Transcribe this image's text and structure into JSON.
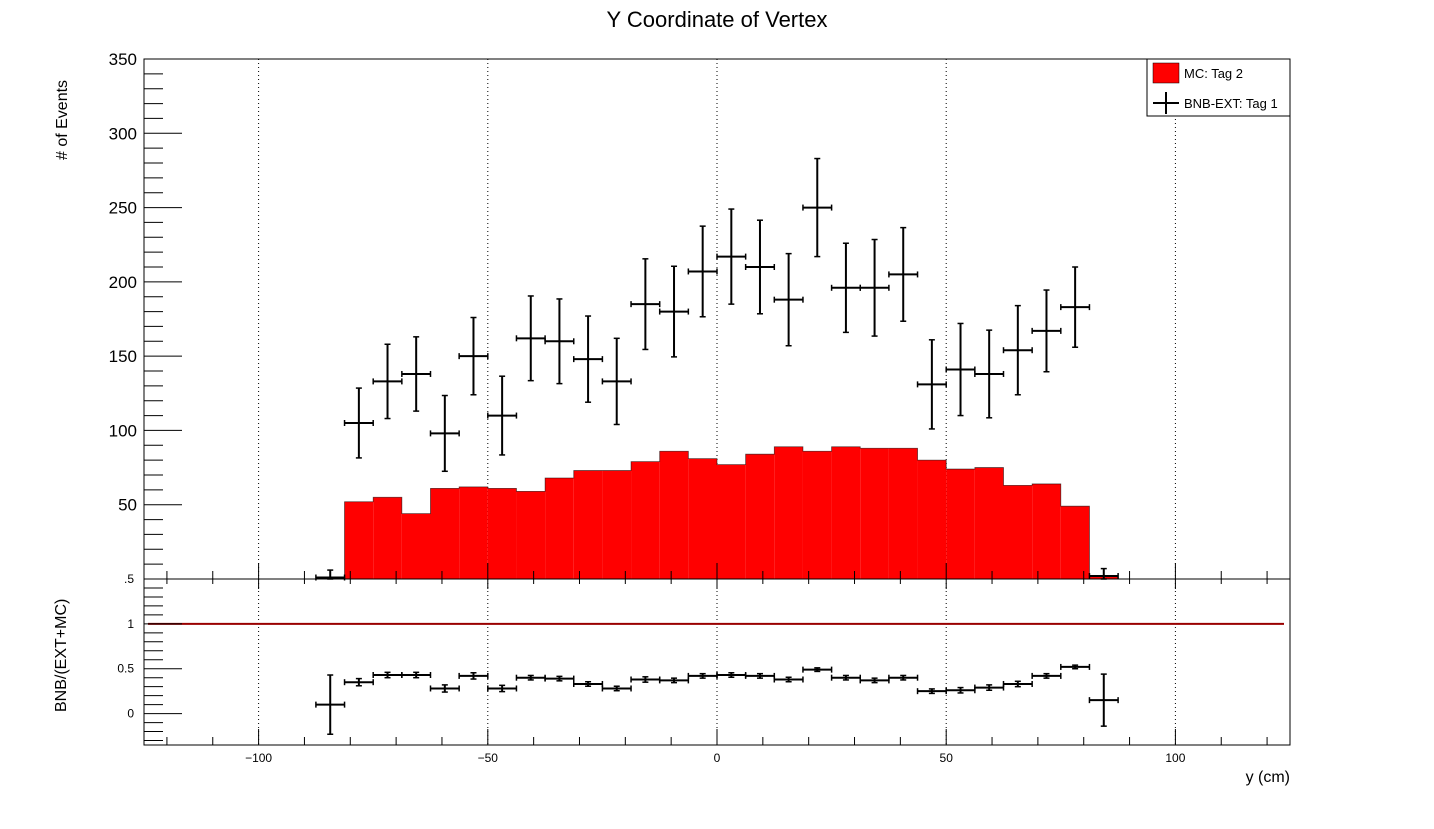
{
  "chart_data": [
    {
      "type": "bar",
      "title": "Y Coordinate of Vertex",
      "ylabel": "# of Events",
      "xlim": [
        -125,
        125
      ],
      "ylim": [
        0,
        350
      ],
      "yticks": [
        "50",
        "100",
        "150",
        "200",
        "250",
        "300",
        "350"
      ],
      "grid_x": true,
      "legend": {
        "placement": "top-right",
        "entries": [
          "MC: Tag 2",
          "BNB-EXT: Tag 1"
        ]
      },
      "bin_edges": [
        -87.5,
        -81.25,
        -75,
        -68.75,
        -62.5,
        -56.25,
        -50,
        -43.75,
        -37.5,
        -31.25,
        -25,
        -18.75,
        -12.5,
        -6.25,
        0,
        6.25,
        12.5,
        18.75,
        25,
        31.25,
        37.5,
        43.75,
        50,
        56.25,
        62.5,
        68.75,
        75,
        81.25,
        87.5
      ],
      "series": [
        {
          "name": "MC: Tag 2",
          "kind": "hist",
          "color": "#ff0000",
          "values": [
            1,
            52,
            55,
            44,
            61,
            62,
            61,
            59,
            68,
            73,
            73,
            79,
            86,
            81,
            77,
            84,
            89,
            86,
            89,
            88,
            88,
            80,
            74,
            75,
            63,
            64,
            49,
            2
          ]
        },
        {
          "name": "BNB-EXT: Tag 1",
          "kind": "errorbar",
          "color": "#000000",
          "x": [
            -84.375,
            -78.125,
            -71.875,
            -65.625,
            -59.375,
            -53.125,
            -46.875,
            -40.625,
            -34.375,
            -28.125,
            -21.875,
            -15.625,
            -9.375,
            -3.125,
            3.125,
            9.375,
            15.625,
            21.875,
            28.125,
            34.375,
            40.625,
            46.875,
            53.125,
            59.375,
            65.625,
            71.875,
            78.125,
            84.375
          ],
          "values": [
            1,
            105,
            133,
            138,
            98,
            150,
            110,
            162,
            160,
            148,
            133,
            185,
            180,
            207,
            217,
            210,
            188,
            250,
            196,
            196,
            205,
            131,
            141,
            138,
            154,
            167,
            183,
            2
          ],
          "err": [
            5,
            23.5,
            25,
            25,
            25.5,
            26,
            26.5,
            28.5,
            28.5,
            29,
            29,
            30.5,
            30.5,
            30.5,
            32,
            31.5,
            31,
            33,
            30,
            32.5,
            31.5,
            30,
            31,
            29.5,
            30,
            27.5,
            27,
            5
          ]
        }
      ]
    },
    {
      "type": "scatter",
      "ylabel": "BNB/(EXT+MC)",
      "xlabel": "y (cm)",
      "xlim": [
        -125,
        125
      ],
      "ylim": [
        -0.35,
        1.5
      ],
      "xticks": [
        "−100",
        "−50",
        "0",
        "50",
        "100"
      ],
      "yticks": [
        "0",
        "0.5",
        "1"
      ],
      "top_tick_partial": ".5",
      "grid_x": true,
      "reference_line": {
        "y": 1,
        "color": "#990000"
      },
      "series": [
        {
          "kind": "errorbar",
          "color": "#000000",
          "x": [
            -84.375,
            -78.125,
            -71.875,
            -65.625,
            -59.375,
            -53.125,
            -46.875,
            -40.625,
            -34.375,
            -28.125,
            -21.875,
            -15.625,
            -9.375,
            -3.125,
            3.125,
            9.375,
            15.625,
            21.875,
            28.125,
            34.375,
            40.625,
            46.875,
            53.125,
            59.375,
            65.625,
            71.875,
            78.125,
            84.375
          ],
          "values": [
            0.1,
            0.35,
            0.43,
            0.43,
            0.28,
            0.42,
            0.28,
            0.4,
            0.39,
            0.33,
            0.28,
            0.38,
            0.37,
            0.42,
            0.43,
            0.42,
            0.38,
            0.49,
            0.4,
            0.37,
            0.4,
            0.25,
            0.26,
            0.29,
            0.33,
            0.42,
            0.52,
            0.15
          ],
          "err": [
            0.33,
            0.04,
            0.03,
            0.03,
            0.04,
            0.035,
            0.035,
            0.025,
            0.025,
            0.025,
            0.025,
            0.03,
            0.025,
            0.025,
            0.025,
            0.025,
            0.025,
            0.02,
            0.025,
            0.025,
            0.025,
            0.025,
            0.03,
            0.03,
            0.03,
            0.025,
            0.02,
            0.29
          ]
        }
      ]
    }
  ]
}
